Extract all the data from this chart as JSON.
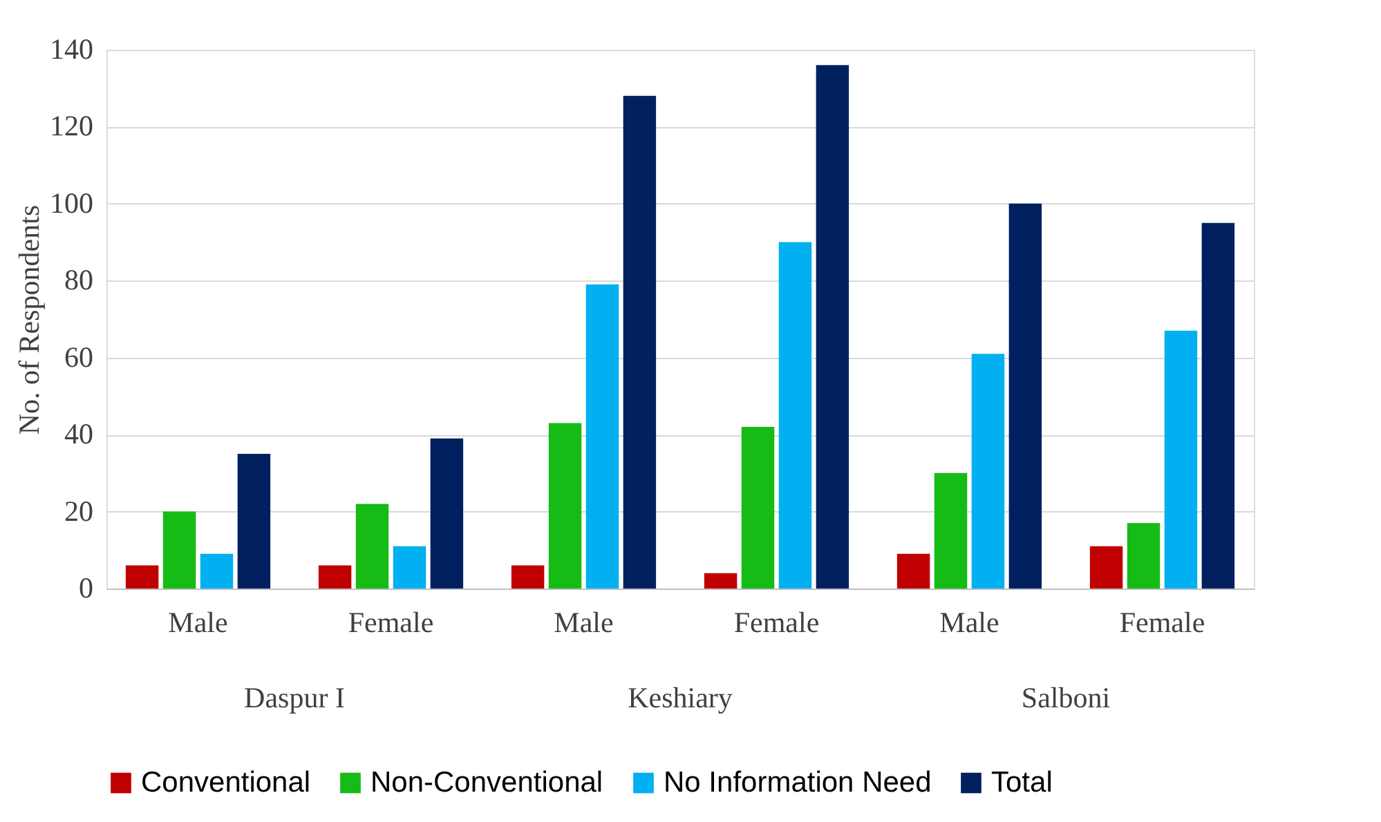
{
  "chart_data": {
    "type": "bar",
    "ylabel": "No. of Respondents",
    "categories": [
      "Male",
      "Female",
      "Male",
      "Female",
      "Male",
      "Female"
    ],
    "annotations": [
      "Daspur I",
      "Keshiary",
      "Salboni"
    ],
    "series": [
      {
        "name": "Conventional",
        "color": "#c00000",
        "values": [
          6,
          6,
          6,
          4,
          9,
          11
        ]
      },
      {
        "name": "Non-Conventional",
        "color": "#16bb16",
        "values": [
          20,
          22,
          43,
          42,
          30,
          17
        ]
      },
      {
        "name": "No Information Need",
        "color": "#00b0f0",
        "values": [
          9,
          11,
          79,
          90,
          61,
          67
        ]
      },
      {
        "name": "Total",
        "color": "#002060",
        "values": [
          35,
          39,
          128,
          136,
          100,
          95
        ]
      }
    ],
    "ylim": [
      0,
      140
    ],
    "yticks": [
      0,
      20,
      40,
      60,
      80,
      100,
      120,
      140
    ],
    "grid": "y",
    "legend": "bottom"
  }
}
